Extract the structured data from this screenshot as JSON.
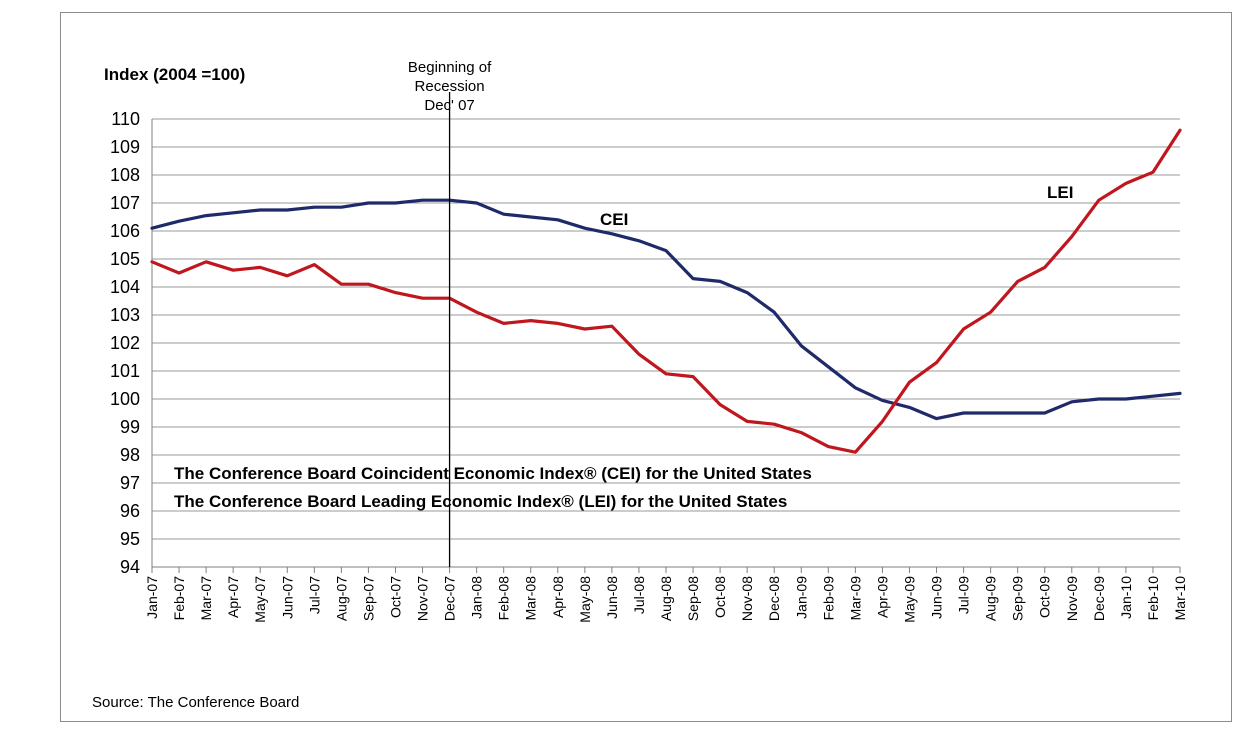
{
  "chart_data": {
    "type": "line",
    "ylabel": "Index (2004 =100)",
    "ylim": [
      94,
      110
    ],
    "yticks": [
      "94",
      "95",
      "96",
      "97",
      "98",
      "99",
      "100",
      "101",
      "102",
      "103",
      "104",
      "105",
      "106",
      "107",
      "108",
      "109",
      "110"
    ],
    "grid": true,
    "categories": [
      "Jan-07",
      "Feb-07",
      "Mar-07",
      "Apr-07",
      "May-07",
      "Jun-07",
      "Jul-07",
      "Aug-07",
      "Sep-07",
      "Oct-07",
      "Nov-07",
      "Dec-07",
      "Jan-08",
      "Feb-08",
      "Mar-08",
      "Apr-08",
      "May-08",
      "Jun-08",
      "Jul-08",
      "Aug-08",
      "Sep-08",
      "Oct-08",
      "Nov-08",
      "Dec-08",
      "Jan-09",
      "Feb-09",
      "Mar-09",
      "Apr-09",
      "May-09",
      "Jun-09",
      "Jul-09",
      "Aug-09",
      "Sep-09",
      "Oct-09",
      "Nov-09",
      "Dec-09",
      "Jan-10",
      "Feb-10",
      "Mar-10"
    ],
    "series": [
      {
        "name": "CEI",
        "color": "#1f2a6b",
        "values": [
          106.1,
          106.35,
          106.55,
          106.65,
          106.75,
          106.75,
          106.85,
          106.85,
          107.0,
          107.0,
          107.1,
          107.1,
          107.0,
          106.6,
          106.5,
          106.4,
          106.1,
          105.9,
          105.65,
          105.3,
          104.3,
          104.2,
          103.8,
          103.1,
          101.9,
          101.15,
          100.4,
          99.95,
          99.7,
          99.3,
          99.5,
          99.5,
          99.5,
          99.5,
          99.9,
          100.0,
          100.0,
          100.1,
          100.2
        ]
      },
      {
        "name": "LEI",
        "color": "#c0161d",
        "values": [
          104.9,
          104.5,
          104.9,
          104.6,
          104.7,
          104.4,
          104.8,
          104.1,
          104.1,
          103.8,
          103.6,
          103.6,
          103.1,
          102.7,
          102.8,
          102.7,
          102.5,
          102.6,
          101.6,
          100.9,
          100.8,
          99.8,
          99.2,
          99.1,
          98.8,
          98.3,
          98.1,
          99.2,
          100.6,
          101.3,
          102.5,
          103.1,
          104.2,
          104.7,
          105.8,
          107.1,
          107.7,
          108.1,
          109.6
        ]
      }
    ],
    "series_labels": [
      "CEI",
      "LEI"
    ],
    "annotation": {
      "lines": [
        "Beginning of",
        "Recession",
        "Dec' 07"
      ],
      "category": "Dec-07"
    },
    "legend": [
      "The Conference Board Coincident Economic Index® (CEI) for the United States",
      "The Conference Board Leading Economic Index® (LEI) for the United  States"
    ],
    "source": "Source: The Conference Board"
  }
}
